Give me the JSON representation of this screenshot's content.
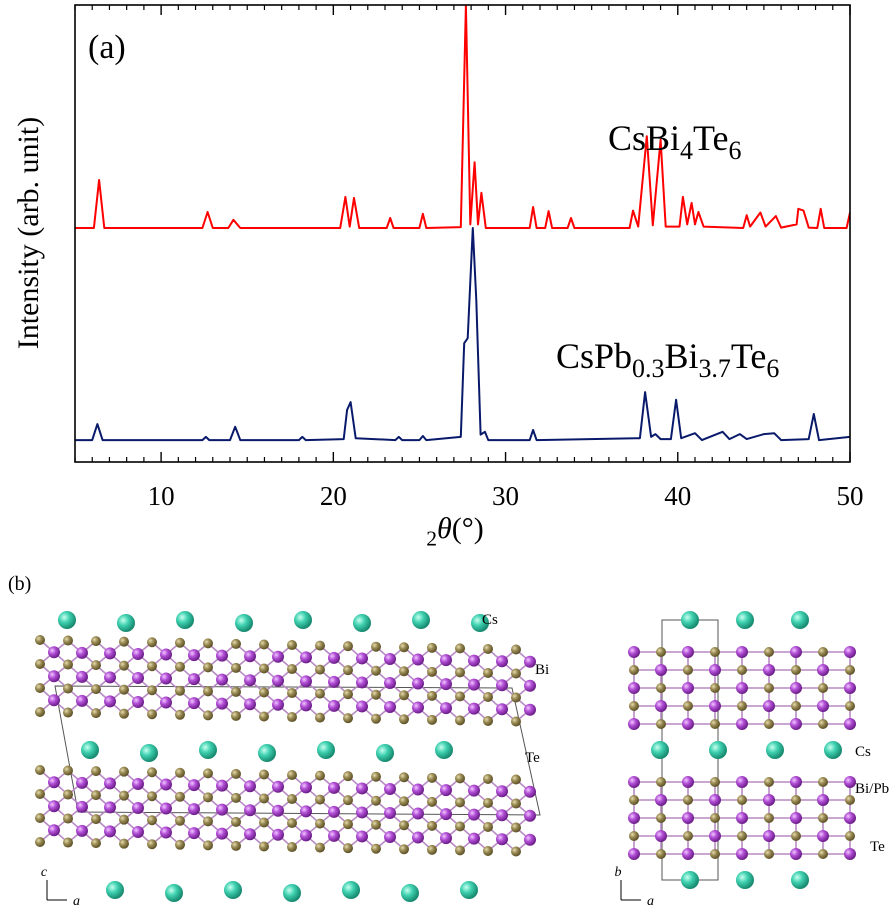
{
  "chart_data": {
    "type": "line",
    "panel_label": "(a)",
    "x_label": "2θ(°)",
    "y_label": "Intensity (arb. unit)",
    "xlim": [
      5,
      50
    ],
    "xticks": [
      10,
      20,
      30,
      40,
      50
    ],
    "xminorticks": [
      5,
      6,
      7,
      8,
      9,
      11,
      12,
      13,
      14,
      15,
      16,
      17,
      18,
      19,
      21,
      22,
      23,
      24,
      25,
      26,
      27,
      28,
      29,
      31,
      32,
      33,
      34,
      35,
      36,
      37,
      38,
      39,
      41,
      42,
      43,
      44,
      45,
      46,
      47,
      48,
      49
    ],
    "ylim": [
      0,
      100
    ],
    "series": [
      {
        "name": "CsBi4Te6",
        "color": "#ff0000",
        "x": [
          5.0,
          6.1,
          6.4,
          6.7,
          12.4,
          12.7,
          13.0,
          13.9,
          14.2,
          14.6,
          20.4,
          20.7,
          20.95,
          21.2,
          21.5,
          23.1,
          23.3,
          23.5,
          25.0,
          25.2,
          25.4,
          27.4,
          27.7,
          27.95,
          28.2,
          28.4,
          28.6,
          28.85,
          31.4,
          31.6,
          31.8,
          32.3,
          32.5,
          32.7,
          33.6,
          33.8,
          34.0,
          37.2,
          37.4,
          37.7,
          38.2,
          38.55,
          39.0,
          39.3,
          40.1,
          40.3,
          40.55,
          40.8,
          41.0,
          41.2,
          41.5,
          43.8,
          44.0,
          44.2,
          44.8,
          45.1,
          45.7,
          46.0,
          46.9,
          47.0,
          47.3,
          47.6,
          48.1,
          48.3,
          48.5,
          49.8,
          50.0
        ],
        "values": [
          51.2,
          51.2,
          61.7,
          51.2,
          51.2,
          54.7,
          51.2,
          51.2,
          53.0,
          51.2,
          51.2,
          58.0,
          51.5,
          57.8,
          51.2,
          51.2,
          53.4,
          51.2,
          51.2,
          54.3,
          51.2,
          51.4,
          100,
          52,
          65.6,
          52,
          58.9,
          51.2,
          51.2,
          55.8,
          51.2,
          51.2,
          54.9,
          51.2,
          51.2,
          53.4,
          51.2,
          51.2,
          55.0,
          51.5,
          71.3,
          51.8,
          70.5,
          51.5,
          51.5,
          58.0,
          52,
          56.7,
          52,
          54.7,
          51.5,
          51.2,
          54.0,
          51.5,
          54.6,
          51.5,
          53.8,
          51.3,
          52,
          55.4,
          55.0,
          51.3,
          51.2,
          55.4,
          51.2,
          51.2,
          54.6
        ]
      },
      {
        "name": "CsPb0.3Bi3.7Te6",
        "color": "#0a1a6b",
        "x": [
          5.0,
          6.0,
          6.3,
          6.6,
          12.4,
          12.6,
          12.8,
          14.0,
          14.3,
          14.6,
          18.0,
          18.2,
          18.4,
          20.6,
          20.8,
          21.0,
          21.3,
          23.6,
          23.8,
          24.0,
          25.0,
          25.2,
          25.4,
          27.4,
          27.6,
          27.8,
          28.1,
          28.3,
          28.55,
          28.8,
          29.0,
          31.4,
          31.6,
          31.8,
          37.8,
          38.1,
          38.45,
          38.7,
          39.0,
          39.6,
          39.9,
          40.2,
          41.0,
          41.4,
          42.6,
          43.0,
          43.6,
          44.0,
          45.0,
          45.6,
          46.0,
          47.6,
          47.9,
          48.2,
          50.0
        ],
        "values": [
          4.8,
          4.8,
          8.3,
          4.8,
          4.8,
          5.5,
          4.8,
          4.8,
          7.7,
          4.8,
          4.8,
          5.5,
          4.8,
          5.0,
          11.4,
          13.1,
          5.2,
          4.8,
          5.5,
          4.8,
          4.8,
          5.7,
          4.8,
          5.5,
          26,
          27.1,
          51.2,
          35.4,
          6,
          6.6,
          4.8,
          4.8,
          7.0,
          4.8,
          5.2,
          15.3,
          5.5,
          6.1,
          5.0,
          5.0,
          13.6,
          5.2,
          6.3,
          4.8,
          6.6,
          5.0,
          6.1,
          5.0,
          6.1,
          6.3,
          4.8,
          5.0,
          10.5,
          4.8,
          5.5
        ]
      }
    ]
  },
  "panel_b": {
    "label": "(b)",
    "left": {
      "labels": [
        "Cs",
        "Bi",
        "Te"
      ],
      "axes": [
        "c",
        "a"
      ]
    },
    "right": {
      "labels": [
        "Cs",
        "Bi/Pb",
        "Te"
      ],
      "axes": [
        "b",
        "a"
      ]
    }
  }
}
